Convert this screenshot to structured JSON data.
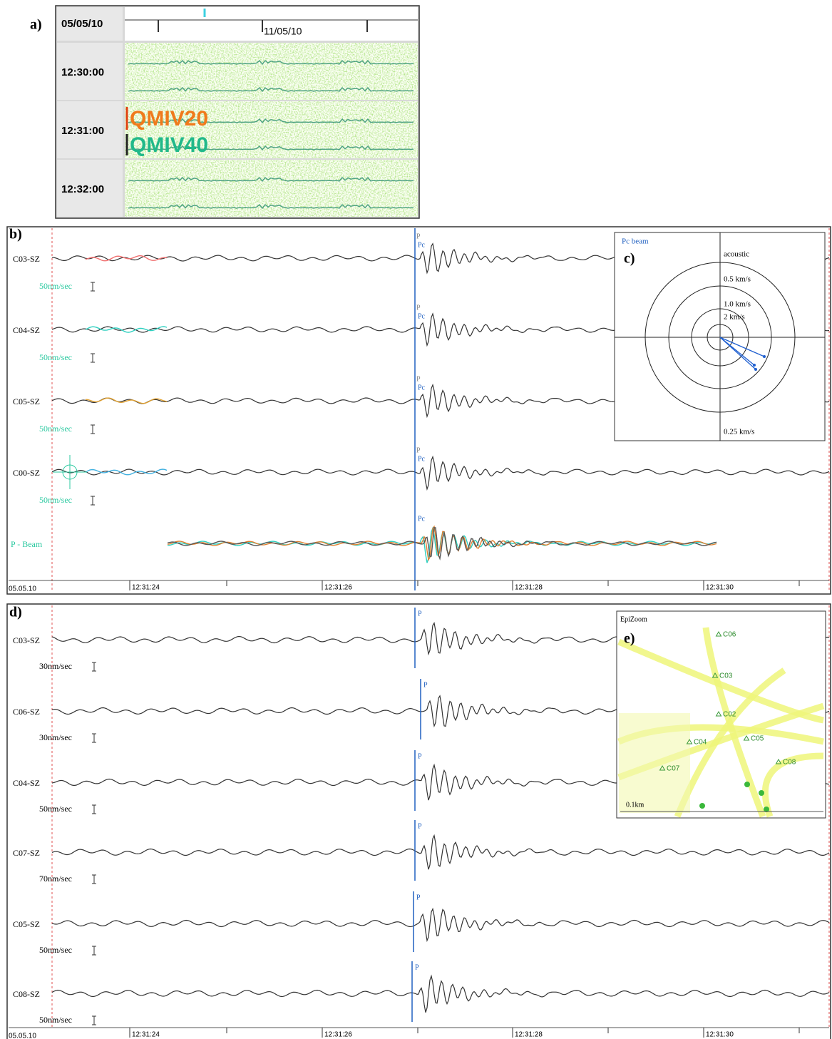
{
  "panel_a": {
    "label": "a)",
    "date": "05/05/10",
    "timeline_label": "11/05/10",
    "rows": [
      "12:30:00",
      "12:31:00",
      "12:32:00"
    ],
    "stations": [
      "QMIV20",
      "QMIV40"
    ]
  },
  "panel_b": {
    "label": "b)",
    "traces": [
      {
        "name": "C03-SZ",
        "scale": "50nm/sec",
        "picks": [
          "P",
          "Pc"
        ]
      },
      {
        "name": "C04-SZ",
        "scale": "50nm/sec",
        "picks": [
          "P",
          "Pc"
        ]
      },
      {
        "name": "C05-SZ",
        "scale": "50nm/sec",
        "picks": [
          "P",
          "Pc"
        ]
      },
      {
        "name": "C00-SZ",
        "scale": "50nm/sec",
        "picks": [
          "P",
          "Pc"
        ]
      }
    ],
    "beam": {
      "name": "P - Beam",
      "pick": "Pc"
    },
    "axis": {
      "date": "05.05.10",
      "ticks": [
        "12:31:24",
        "12:31:26",
        "12:31:28",
        "12:31:30"
      ]
    }
  },
  "panel_c": {
    "label": "c)",
    "title": "Pc beam",
    "rings": [
      "acoustic",
      "0.5 km/s",
      "1.0 km/s",
      "2 km/s"
    ],
    "bottom": "0.25 km/s"
  },
  "panel_d": {
    "label": "d)",
    "traces": [
      {
        "name": "C03-SZ",
        "scale": "30nm/sec",
        "pick": "P"
      },
      {
        "name": "C06-SZ",
        "scale": "30nm/sec",
        "pick": "P"
      },
      {
        "name": "C04-SZ",
        "scale": "50nm/sec",
        "pick": "P"
      },
      {
        "name": "C07-SZ",
        "scale": "70nm/sec",
        "pick": "P"
      },
      {
        "name": "C05-SZ",
        "scale": "50nm/sec",
        "pick": "P"
      },
      {
        "name": "C08-SZ",
        "scale": "50nm/sec",
        "pick": "P"
      }
    ],
    "axis": {
      "date": "05.05.10",
      "ticks": [
        "12:31:24",
        "12:31:26",
        "12:31:28",
        "12:31:30"
      ]
    }
  },
  "panel_e": {
    "label": "e)",
    "title": "EpiZoom",
    "stations": [
      "C06",
      "C03",
      "C02",
      "C05",
      "C04",
      "C08",
      "C07"
    ],
    "scale": "0.1km"
  }
}
